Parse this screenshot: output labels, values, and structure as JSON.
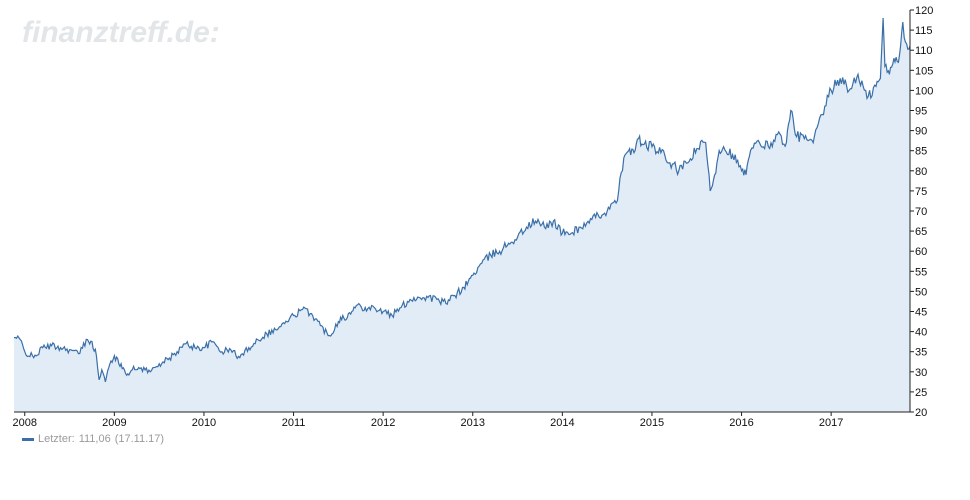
{
  "watermark": "finanztreff.de:",
  "legend": {
    "prefix": "Letzter:",
    "value": "111,06",
    "date": "(17.11.17)"
  },
  "colors": {
    "line": "#3a6fa8",
    "fill": "#e2ecf7",
    "axis": "#222222"
  },
  "chart_data": {
    "type": "area",
    "title": "",
    "xlabel": "",
    "ylabel": "",
    "grid": false,
    "legend_position": "bottom-left",
    "xlim": [
      2007.88,
      2017.88
    ],
    "ylim": [
      20,
      120
    ],
    "yaxis_position": "right",
    "x_tick_labels": [
      "2008",
      "2009",
      "2010",
      "2011",
      "2012",
      "2013",
      "2014",
      "2015",
      "2016",
      "2017"
    ],
    "y_tick_labels": [
      "20",
      "25",
      "30",
      "35",
      "40",
      "45",
      "50",
      "55",
      "60",
      "65",
      "70",
      "75",
      "80",
      "85",
      "90",
      "95",
      "100",
      "105",
      "110",
      "115",
      "120"
    ],
    "series": [
      {
        "x": [
          2007.88,
          2007.95,
          2008.0,
          2008.1,
          2008.2,
          2008.3,
          2008.4,
          2008.5,
          2008.6,
          2008.7,
          2008.75,
          2008.8,
          2008.83,
          2008.86,
          2008.9,
          2008.95,
          2009.0,
          2009.05,
          2009.1,
          2009.15,
          2009.2,
          2009.3,
          2009.4,
          2009.5,
          2009.6,
          2009.7,
          2009.8,
          2009.9,
          2010.0,
          2010.1,
          2010.2,
          2010.3,
          2010.4,
          2010.5,
          2010.6,
          2010.7,
          2010.8,
          2010.9,
          2011.0,
          2011.1,
          2011.2,
          2011.3,
          2011.4,
          2011.5,
          2011.55,
          2011.6,
          2011.65,
          2011.7,
          2011.8,
          2011.9,
          2012.0,
          2012.1,
          2012.2,
          2012.3,
          2012.4,
          2012.5,
          2012.6,
          2012.7,
          2012.8,
          2012.9,
          2012.95,
          2013.0,
          2013.1,
          2013.2,
          2013.3,
          2013.4,
          2013.5,
          2013.6,
          2013.7,
          2013.8,
          2013.9,
          2014.0,
          2014.1,
          2014.2,
          2014.3,
          2014.4,
          2014.5,
          2014.6,
          2014.7,
          2014.75,
          2014.8,
          2014.85,
          2014.9,
          2015.0,
          2015.1,
          2015.2,
          2015.3,
          2015.4,
          2015.5,
          2015.6,
          2015.65,
          2015.7,
          2015.75,
          2015.8,
          2015.9,
          2016.0,
          2016.05,
          2016.1,
          2016.2,
          2016.3,
          2016.4,
          2016.5,
          2016.55,
          2016.6,
          2016.7,
          2016.8,
          2016.9,
          2017.0,
          2017.1,
          2017.2,
          2017.3,
          2017.4,
          2017.5,
          2017.55,
          2017.58,
          2017.6,
          2017.65,
          2017.7,
          2017.75,
          2017.8,
          2017.83,
          2017.88
        ],
        "values": [
          38.5,
          38.0,
          35.0,
          33.5,
          36.0,
          36.5,
          36.0,
          35.5,
          34.5,
          38.0,
          37.5,
          34.0,
          28.0,
          30.5,
          27.5,
          32.0,
          34.0,
          32.0,
          31.0,
          29.5,
          30.5,
          31.0,
          30.0,
          32.0,
          33.0,
          35.0,
          37.0,
          36.0,
          36.0,
          37.5,
          35.0,
          35.5,
          33.5,
          36.0,
          38.0,
          39.5,
          40.5,
          42.0,
          44.0,
          45.5,
          44.5,
          41.5,
          39.0,
          42.5,
          44.0,
          43.5,
          45.0,
          46.5,
          46.0,
          46.0,
          45.0,
          44.0,
          46.0,
          48.0,
          48.5,
          48.5,
          48.0,
          47.0,
          49.0,
          51.0,
          52.5,
          54.0,
          57.0,
          59.0,
          60.0,
          62.0,
          63.5,
          66.0,
          67.5,
          66.0,
          67.5,
          64.5,
          64.5,
          66.0,
          67.0,
          69.0,
          70.0,
          72.0,
          84.0,
          85.5,
          84.5,
          88.0,
          86.5,
          86.0,
          84.5,
          82.0,
          80.0,
          82.0,
          85.5,
          87.0,
          75.0,
          79.0,
          85.0,
          86.0,
          84.0,
          80.0,
          79.0,
          85.0,
          87.0,
          86.0,
          89.0,
          87.0,
          95.0,
          89.0,
          88.0,
          87.0,
          94.0,
          100.0,
          103.0,
          100.0,
          104.0,
          98.0,
          101.0,
          103.0,
          118.0,
          106.0,
          104.0,
          108.0,
          107.0,
          117.0,
          112.0,
          111.06
        ]
      }
    ]
  }
}
